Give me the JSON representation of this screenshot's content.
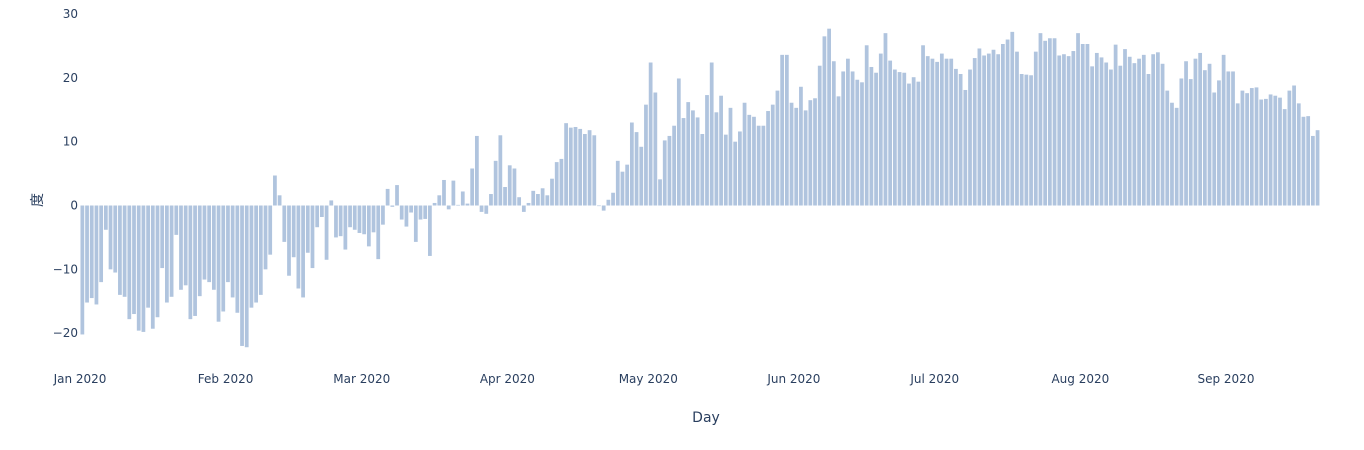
{
  "chart_data": {
    "type": "bar",
    "title": "",
    "xlabel": "Day",
    "ylabel": "度",
    "bar_color": "#b0c4de",
    "background": "#ffffff",
    "grid": false,
    "ylim": [
      -24.2,
      30
    ],
    "x_start": "2020-01-01",
    "x_end": "2020-09-23",
    "x_ticks": [
      {
        "date": "2020-01-01",
        "label": "Jan 2020"
      },
      {
        "date": "2020-02-01",
        "label": "Feb 2020"
      },
      {
        "date": "2020-03-01",
        "label": "Mar 2020"
      },
      {
        "date": "2020-04-01",
        "label": "Apr 2020"
      },
      {
        "date": "2020-05-01",
        "label": "May 2020"
      },
      {
        "date": "2020-06-01",
        "label": "Jun 2020"
      },
      {
        "date": "2020-07-01",
        "label": "Jul 2020"
      },
      {
        "date": "2020-08-01",
        "label": "Aug 2020"
      },
      {
        "date": "2020-09-01",
        "label": "Sep 2020"
      }
    ],
    "y_ticks": [
      {
        "value": 30,
        "label": "30"
      },
      {
        "value": 20,
        "label": "20"
      },
      {
        "value": 10,
        "label": "10"
      },
      {
        "value": 0,
        "label": "0"
      },
      {
        "value": -10,
        "label": "−10"
      },
      {
        "value": -20,
        "label": "−20"
      }
    ],
    "values": [
      -20.2,
      -15.2,
      -14.5,
      -15.5,
      -12.0,
      -3.8,
      -10.0,
      -10.5,
      -14.0,
      -14.3,
      -17.8,
      -17.0,
      -19.6,
      -19.8,
      -16.0,
      -19.3,
      -17.5,
      -9.8,
      -15.2,
      -14.3,
      -4.6,
      -13.2,
      -12.5,
      -17.8,
      -17.3,
      -14.2,
      -11.6,
      -12.0,
      -13.2,
      -18.2,
      -16.6,
      -12.0,
      -14.4,
      -16.8,
      -22.0,
      -22.2,
      -16.0,
      -15.2,
      -14.0,
      -10.0,
      -7.7,
      4.7,
      1.6,
      -5.7,
      -11.0,
      -8.1,
      -13.0,
      -14.4,
      -7.4,
      -9.8,
      -3.4,
      -1.8,
      -8.5,
      0.8,
      -5.0,
      -4.8,
      -6.9,
      -3.4,
      -3.8,
      -4.3,
      -4.5,
      -6.4,
      -4.2,
      -8.4,
      -3.0,
      2.6,
      -0.2,
      3.2,
      -2.2,
      -3.3,
      -1.1,
      -5.7,
      -2.2,
      -2.1,
      -7.9,
      0.4,
      1.6,
      4.0,
      -0.6,
      3.9,
      0.1,
      2.2,
      0.3,
      5.8,
      10.9,
      -1.0,
      -1.3,
      1.8,
      7.0,
      11.0,
      2.9,
      6.3,
      5.8,
      1.3,
      -1.0,
      0.4,
      2.3,
      1.8,
      2.7,
      1.6,
      4.2,
      6.8,
      7.3,
      12.9,
      12.2,
      12.3,
      12.0,
      11.2,
      11.8,
      11.0,
      0.0,
      -0.8,
      0.9,
      2.0,
      7.0,
      5.3,
      6.4,
      13.0,
      11.5,
      9.2,
      15.8,
      22.4,
      17.7,
      4.1,
      10.2,
      10.9,
      12.5,
      19.9,
      13.7,
      16.2,
      14.9,
      13.8,
      11.2,
      17.3,
      22.4,
      14.6,
      17.2,
      11.1,
      15.3,
      10.0,
      11.6,
      16.1,
      14.2,
      13.9,
      12.5,
      12.5,
      14.8,
      15.8,
      18.0,
      23.6,
      23.6,
      16.1,
      15.3,
      18.6,
      14.9,
      16.5,
      16.8,
      21.9,
      26.5,
      27.7,
      22.6,
      17.1,
      21.0,
      23.0,
      21.0,
      19.7,
      19.3,
      25.1,
      21.7,
      20.8,
      23.8,
      27.0,
      22.7,
      21.3,
      20.9,
      20.8,
      19.1,
      20.1,
      19.4,
      25.1,
      23.4,
      23.0,
      22.5,
      23.8,
      23.0,
      23.0,
      21.4,
      20.6,
      18.1,
      21.3,
      23.1,
      24.6,
      23.5,
      23.8,
      24.4,
      23.7,
      25.3,
      26.0,
      27.2,
      24.1,
      20.6,
      20.5,
      20.4,
      24.1,
      27.0,
      25.8,
      26.2,
      26.2,
      23.5,
      23.7,
      23.4,
      24.2,
      27.0,
      25.3,
      25.3,
      21.8,
      23.9,
      23.2,
      22.4,
      21.3,
      25.2,
      21.9,
      24.5,
      23.3,
      22.3,
      23.0,
      23.6,
      20.6,
      23.7,
      24.0,
      22.2,
      18.0,
      16.1,
      15.3,
      19.9,
      22.6,
      19.8,
      23.0,
      23.9,
      21.2,
      22.2,
      17.7,
      19.6,
      23.6,
      21.0,
      21.0,
      16.0,
      18.0,
      17.6,
      18.4,
      18.5,
      16.6,
      16.7,
      17.4,
      17.2,
      16.9,
      15.1,
      18.0,
      18.8,
      16.0,
      13.9,
      14.0,
      10.9,
      11.8
    ]
  }
}
